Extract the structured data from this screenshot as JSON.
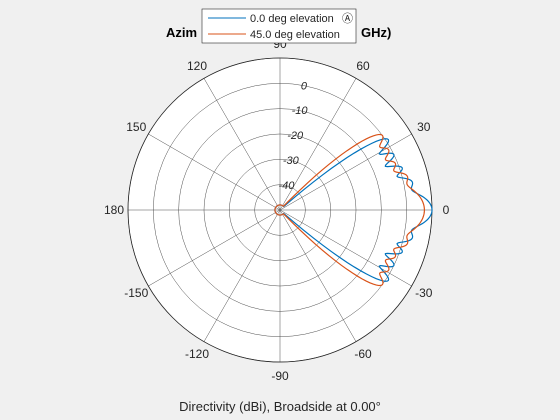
{
  "chart_data": {
    "type": "line",
    "subtype": "polar",
    "title_left": "Azim",
    "title_right": "GHz)",
    "caption": "Directivity (dBi), Broadside at 0.00°",
    "angle_ticks": [
      "0",
      "30",
      "60",
      "90",
      "120",
      "150",
      "180",
      "-150",
      "-120",
      "-90",
      "-60",
      "-30"
    ],
    "angle_tick_values": [
      0,
      30,
      60,
      90,
      120,
      150,
      180,
      -150,
      -120,
      -90,
      -60,
      -30
    ],
    "radial_ticks": [
      "0",
      "-10",
      "-20",
      "-30",
      "-40"
    ],
    "radial_tick_values": [
      0,
      -10,
      -20,
      -30,
      -40
    ],
    "rlim": [
      -50,
      10
    ],
    "grid": true,
    "legend_position": "top-center",
    "series": [
      {
        "name": "0.0 deg elevation",
        "legend_marker": "Ⓐ",
        "color": "#0072bd",
        "main_lobe_peak": 10,
        "main_lobe_halfwidth_deg": 6,
        "side_lobes": [
          {
            "angle": 12,
            "peak": 3,
            "halfwidth": 3
          },
          {
            "angle": 19,
            "peak": 1,
            "halfwidth": 2.5
          },
          {
            "angle": 26,
            "peak": 0,
            "halfwidth": 2.5
          },
          {
            "angle": 33,
            "peak": 1,
            "halfwidth": 2.5
          }
        ],
        "floor": -48
      },
      {
        "name": "45.0 deg elevation",
        "color": "#d95319",
        "main_lobe_peak": 7,
        "main_lobe_halfwidth_deg": 9,
        "side_lobes": [
          {
            "angle": 15,
            "peak": 1,
            "halfwidth": 3
          },
          {
            "angle": 22,
            "peak": -1,
            "halfwidth": 3
          },
          {
            "angle": 29,
            "peak": -1,
            "halfwidth": 3
          },
          {
            "angle": 36,
            "peak": 0,
            "halfwidth": 3
          }
        ],
        "floor": -48
      }
    ]
  }
}
